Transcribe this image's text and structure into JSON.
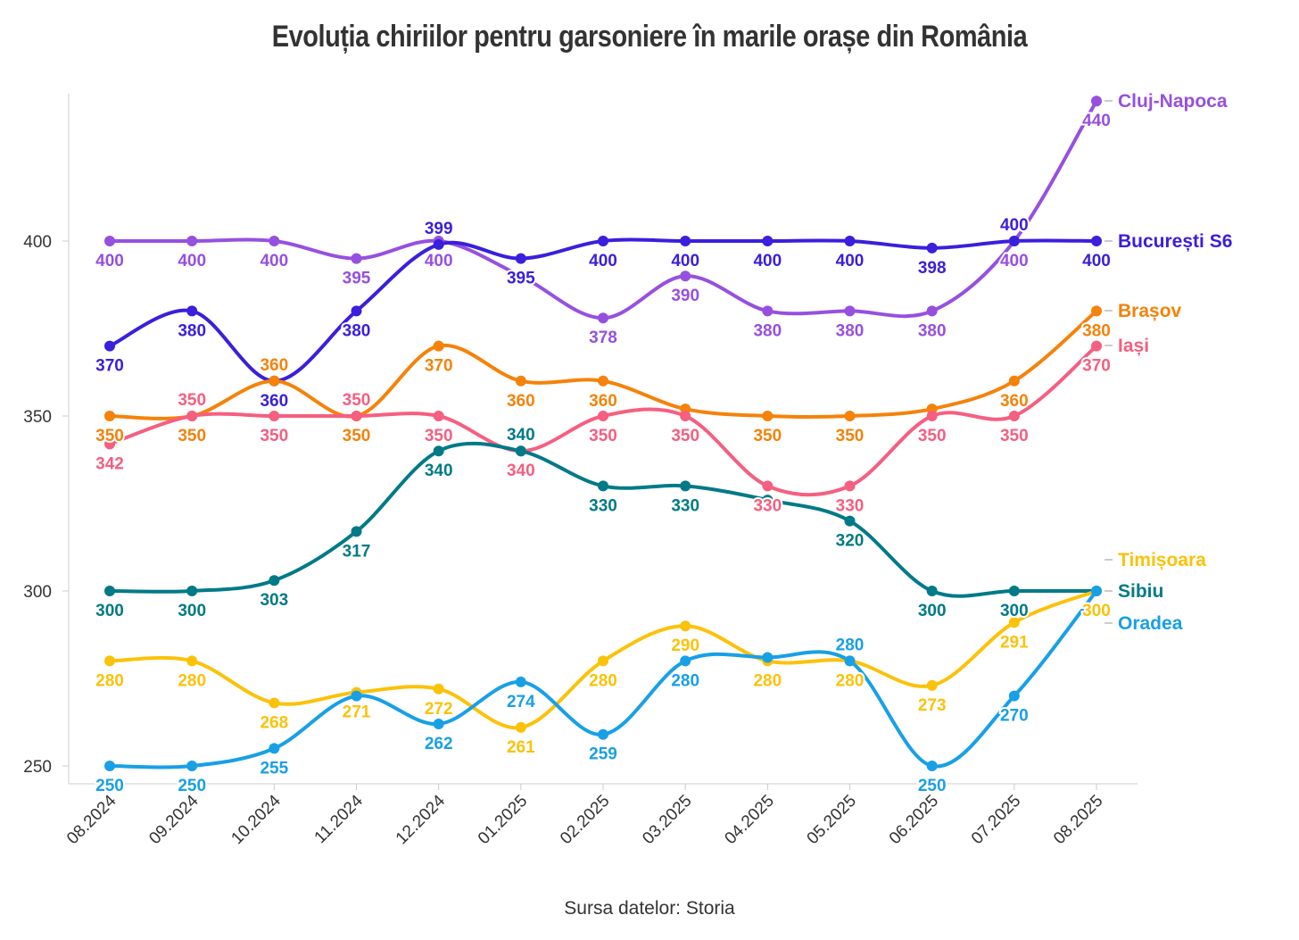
{
  "chart_data": {
    "type": "line",
    "title": "Evoluția chiriilor pentru garsoniere în marile orașe din România",
    "source": "Sursa datelor: Storia",
    "xlabel": "",
    "ylabel": "",
    "categories": [
      "08.2024",
      "09.2024",
      "10.2024",
      "11.2024",
      "12.2024",
      "01.2025",
      "02.2025",
      "03.2025",
      "04.2025",
      "05.2025",
      "06.2025",
      "07.2025",
      "08.2025"
    ],
    "yticks": [
      250,
      300,
      350,
      400
    ],
    "ylim": [
      245,
      445
    ],
    "grid": false,
    "legend": "right-end labels",
    "series": [
      {
        "name": "Cluj-Napoca",
        "color": "#9650e0",
        "values": [
          400,
          400,
          400,
          395,
          400,
          390,
          378,
          390,
          380,
          380,
          380,
          400,
          440
        ],
        "hidden_labels": [
          5
        ]
      },
      {
        "name": "București S6",
        "color": "#3a1fdc",
        "values": [
          370,
          380,
          360,
          380,
          399,
          395,
          400,
          400,
          400,
          400,
          398,
          400,
          400
        ],
        "hidden_labels": []
      },
      {
        "name": "Brașov",
        "color": "#f5820a",
        "values": [
          350,
          350,
          360,
          350,
          370,
          360,
          360,
          352,
          350,
          350,
          352,
          360,
          380
        ],
        "hidden_labels": [
          7,
          10
        ]
      },
      {
        "name": "Iași",
        "color": "#f55f80",
        "values": [
          342,
          350,
          350,
          350,
          350,
          340,
          350,
          350,
          330,
          330,
          350,
          350,
          370
        ],
        "hidden_labels": []
      },
      {
        "name": "Sibiu",
        "color": "#007a87",
        "values": [
          300,
          300,
          303,
          317,
          340,
          340,
          330,
          330,
          326,
          320,
          300,
          300,
          300
        ],
        "hidden_labels": [
          8,
          12
        ]
      },
      {
        "name": "Timișoara",
        "color": "#fbc20a",
        "values": [
          280,
          280,
          268,
          271,
          272,
          261,
          280,
          290,
          280,
          280,
          273,
          291,
          300
        ],
        "hidden_labels": []
      },
      {
        "name": "Oradea",
        "color": "#18a0e6",
        "values": [
          250,
          250,
          255,
          270,
          262,
          274,
          259,
          280,
          281,
          280,
          250,
          270,
          300
        ],
        "hidden_labels": [
          3,
          8,
          12
        ]
      }
    ]
  }
}
